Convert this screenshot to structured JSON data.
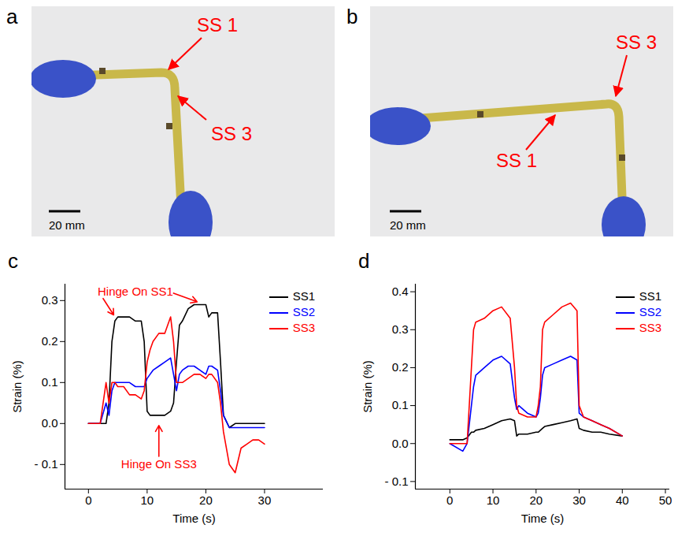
{
  "photos": [
    {
      "panel": "a",
      "labels": [
        "SS 1",
        "SS 3"
      ],
      "scale_bar": "20 mm"
    },
    {
      "panel": "b",
      "labels": [
        "SS 3",
        "SS 1"
      ],
      "scale_bar": "20 mm"
    }
  ],
  "chart_data": [
    {
      "panel": "c",
      "type": "line",
      "xlabel": "Time (s)",
      "ylabel": "Strain (%)",
      "x": [
        0,
        2,
        3,
        3.5,
        4,
        4.5,
        5,
        6,
        7,
        8,
        9,
        9.5,
        10,
        10.5,
        11,
        12,
        13,
        14,
        14.5,
        15,
        15.5,
        16,
        17,
        18,
        19,
        20,
        20.5,
        21,
        22,
        22.5,
        23,
        24,
        25,
        26,
        27,
        28,
        29,
        30
      ],
      "series": [
        {
          "name": "SS1",
          "color": "#000000",
          "values": [
            0,
            0,
            0,
            0.05,
            0.2,
            0.25,
            0.26,
            0.26,
            0.26,
            0.25,
            0.25,
            0.2,
            0.03,
            0.02,
            0.02,
            0.02,
            0.02,
            0.03,
            0.05,
            0.15,
            0.24,
            0.25,
            0.28,
            0.29,
            0.29,
            0.29,
            0.26,
            0.27,
            0.27,
            0.15,
            0.02,
            -0.01,
            0,
            0,
            0,
            0,
            0,
            0
          ]
        },
        {
          "name": "SS2",
          "color": "#0000ff",
          "values": [
            0,
            0,
            0.05,
            0.02,
            0.08,
            0.1,
            0.1,
            0.1,
            0.1,
            0.09,
            0.09,
            0.09,
            0.11,
            0.12,
            0.13,
            0.14,
            0.15,
            0.16,
            0.12,
            0.08,
            0.12,
            0.13,
            0.14,
            0.14,
            0.13,
            0.12,
            0.14,
            0.14,
            0.13,
            0.08,
            0.02,
            -0.01,
            -0.01,
            -0.01,
            -0.01,
            -0.01,
            -0.01,
            -0.01
          ]
        },
        {
          "name": "SS3",
          "color": "#ff0000",
          "values": [
            0,
            0,
            0.1,
            0.05,
            0.1,
            0.1,
            0.09,
            0.09,
            0.07,
            0.07,
            0.06,
            0.08,
            0.15,
            0.18,
            0.2,
            0.22,
            0.22,
            0.26,
            0.2,
            0.1,
            0.1,
            0.1,
            0.11,
            0.12,
            0.12,
            0.11,
            0.12,
            0.12,
            0.1,
            0.05,
            -0.02,
            -0.1,
            -0.12,
            -0.06,
            -0.05,
            -0.04,
            -0.04,
            -0.05
          ]
        }
      ],
      "xlim": [
        -4,
        40
      ],
      "xticks": [
        0,
        10,
        20,
        30
      ],
      "ylim": [
        -0.16,
        0.34
      ],
      "yticks": [
        {
          "value": -0.1,
          "label": "- 0.1"
        },
        {
          "value": 0,
          "label": "0.0"
        },
        0.1,
        0.2,
        0.3
      ],
      "legend": "top-right",
      "annotations": [
        {
          "text": "Hinge On SS1",
          "color": "#ff0000",
          "x": 8,
          "y": 0.322,
          "arrows": [
            [
              2.5,
              0.305,
              4.3,
              0.265
            ],
            [
              14.5,
              0.318,
              18.5,
              0.297
            ]
          ]
        },
        {
          "text": "Hinge On SS3",
          "color": "#ff0000",
          "x": 12,
          "y": -0.1,
          "arrows": [
            [
              12,
              -0.08,
              12,
              -0.005
            ]
          ]
        }
      ]
    },
    {
      "panel": "d",
      "type": "line",
      "xlabel": "Time (s)",
      "ylabel": "Strain (%)",
      "x": [
        0,
        3,
        4,
        5,
        5.5,
        6,
        8,
        10,
        12,
        14,
        15,
        15.5,
        16,
        18,
        20,
        20.5,
        21,
        21.5,
        22,
        24,
        26,
        28,
        29.5,
        30,
        31,
        33,
        35,
        37,
        40
      ],
      "series": [
        {
          "name": "SS1",
          "color": "#000000",
          "values": [
            0.01,
            0.01,
            0.015,
            0.03,
            0.03,
            0.035,
            0.04,
            0.05,
            0.06,
            0.065,
            0.06,
            0.02,
            0.025,
            0.025,
            0.03,
            0.03,
            0.035,
            0.04,
            0.045,
            0.05,
            0.055,
            0.06,
            0.065,
            0.04,
            0.035,
            0.03,
            0.03,
            0.025,
            0.02
          ]
        },
        {
          "name": "SS2",
          "color": "#0000ff",
          "values": [
            0,
            -0.02,
            0,
            0.1,
            0.15,
            0.18,
            0.2,
            0.22,
            0.23,
            0.21,
            0.12,
            0.09,
            0.1,
            0.08,
            0.07,
            0.08,
            0.12,
            0.18,
            0.2,
            0.21,
            0.22,
            0.23,
            0.22,
            0.08,
            0.07,
            0.06,
            0.05,
            0.04,
            0.02
          ]
        },
        {
          "name": "SS3",
          "color": "#ff0000",
          "values": [
            0,
            0,
            0,
            0.2,
            0.3,
            0.32,
            0.33,
            0.35,
            0.36,
            0.33,
            0.2,
            0.1,
            0.08,
            0.07,
            0.07,
            0.1,
            0.15,
            0.3,
            0.32,
            0.34,
            0.36,
            0.37,
            0.35,
            0.1,
            0.07,
            0.06,
            0.05,
            0.04,
            0.02
          ]
        }
      ],
      "xlim": [
        -8,
        51
      ],
      "xticks": [
        0,
        10,
        20,
        30,
        40,
        50
      ],
      "ylim": [
        -0.12,
        0.42
      ],
      "yticks": [
        {
          "value": -0.1,
          "label": "- 0.1"
        },
        {
          "value": 0,
          "label": "0.0"
        },
        0.1,
        0.2,
        0.3,
        0.4
      ],
      "legend": "top-right",
      "annotations": []
    }
  ]
}
